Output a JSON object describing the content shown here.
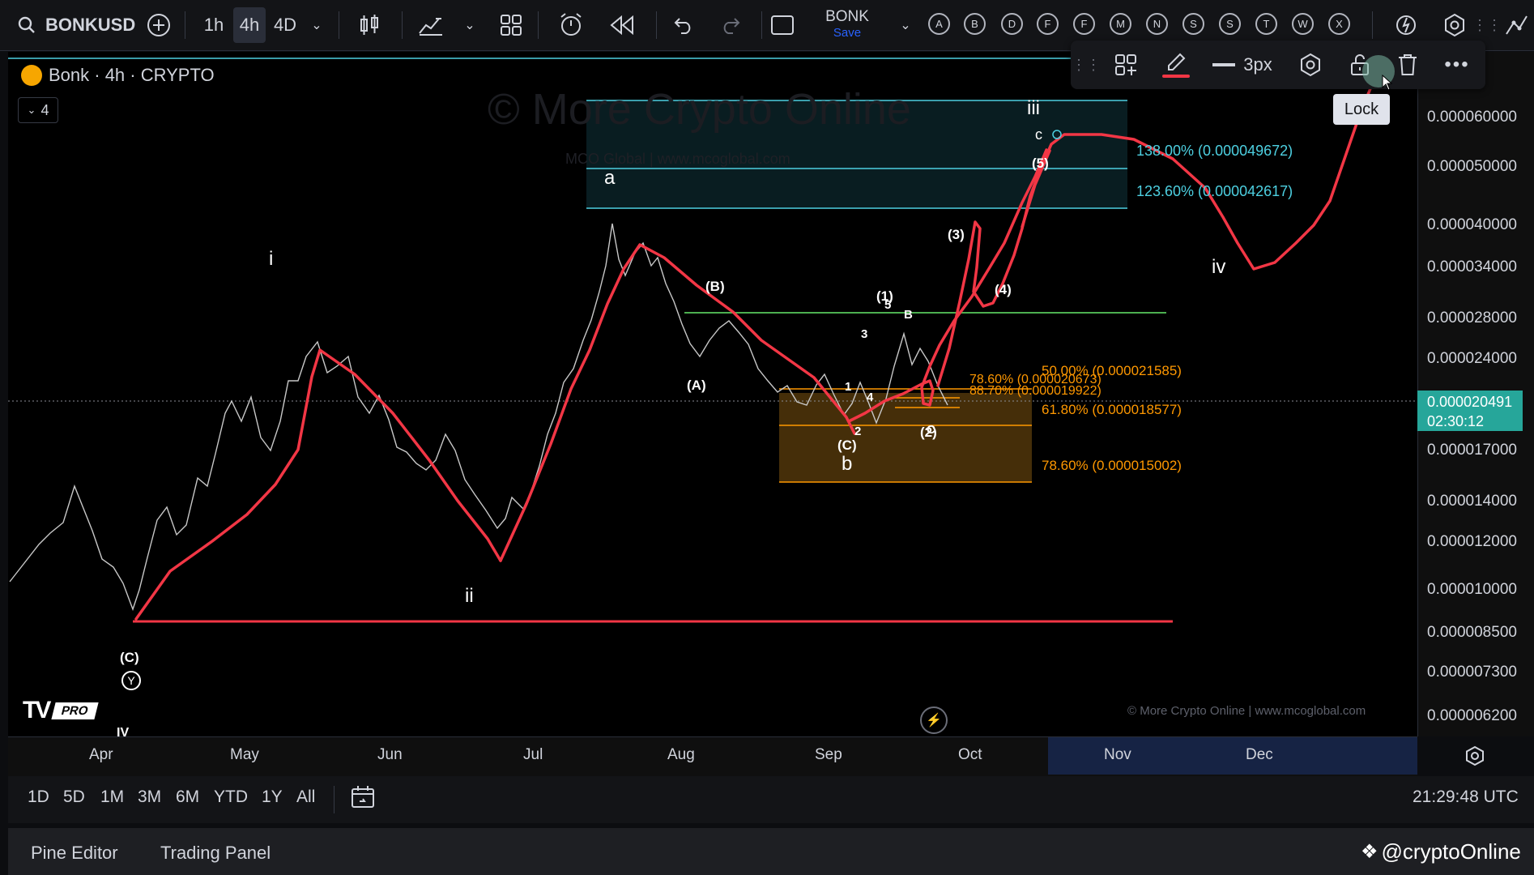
{
  "toolbar": {
    "symbol": "BONKUSD",
    "intervals": [
      "1h",
      "4h",
      "4D"
    ],
    "active_interval": "4h",
    "save_title": "BONK",
    "save_sub": "Save",
    "letters": [
      "A",
      "B",
      "D",
      "F",
      "F",
      "M",
      "N",
      "S",
      "S",
      "T",
      "W",
      "X"
    ]
  },
  "floating_toolbar": {
    "stroke_width": "3px",
    "tooltip": "Lock"
  },
  "legend": {
    "title": "Bonk · 4h · CRYPTO",
    "collapse_count": "4"
  },
  "watermark": {
    "main": "© More Crypto Online",
    "sub": "MCO Global  |  www.mcoglobal.com",
    "footer": "© More Crypto Online  |  www.mcoglobal.com"
  },
  "price_axis": {
    "labels": [
      "0.000060000",
      "0.000050000",
      "0.000040000",
      "0.000034000",
      "0.000028000",
      "0.000024000",
      "0.000017000",
      "0.000014000",
      "0.000012000",
      "0.000010000",
      "0.000008500",
      "0.000007300",
      "0.000006200"
    ],
    "current_price": "0.000020491",
    "countdown": "02:30:12"
  },
  "time_axis": {
    "labels": [
      "Apr",
      "May",
      "Jun",
      "Jul",
      "Aug",
      "Sep",
      "Oct",
      "Nov",
      "Dec"
    ]
  },
  "ranges": {
    "items": [
      "1D",
      "5D",
      "1M",
      "3M",
      "6M",
      "YTD",
      "1Y",
      "All"
    ],
    "clock": "21:29:48 UTC"
  },
  "bottom": {
    "pine": "Pine Editor",
    "trading": "Trading Panel",
    "handle": "@cryptoOnline"
  },
  "fib": {
    "f138": "138.00% (0.000049672)",
    "f123": "123.60% (0.000042617)",
    "f50": "50.00% (0.000021585)",
    "f786a": "78.60% (0.000020673)",
    "f887": "88.70% (0.000019922)",
    "f618": "61.80% (0.000018577)",
    "f786b": "78.60% (0.000015002)"
  },
  "waves": {
    "i": "i",
    "ii": "ii",
    "iii": "iii",
    "iv": "iv",
    "a": "a",
    "b": "b",
    "c": "c",
    "A": "(A)",
    "B": "(B)",
    "C": "(C)",
    "C2": "(C)",
    "Y": "Y",
    "IV": "IV",
    "w1": "(1)",
    "w2": "(2)",
    "w3": "(3)",
    "w4": "(4)",
    "w5": "(5)",
    "s1": "1",
    "s2": "2",
    "s3": "3",
    "s4": "4",
    "s5": "5",
    "sB": "B",
    "sC": "C"
  },
  "colors": {
    "accent": "#2962ff",
    "drawing": "#f23645",
    "fib_blue": "#4dd0e1",
    "fib_orange": "#ff9800",
    "green_line": "#4caf50",
    "price_tag": "#26a69a"
  }
}
